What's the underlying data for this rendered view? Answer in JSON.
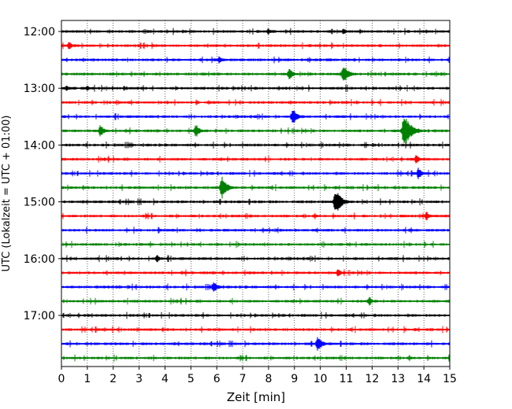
{
  "chart_data": {
    "type": "line",
    "title": "",
    "xlabel": "Zeit  [min]",
    "ylabel": "UTC (Lokalzeit = UTC + 01:00)",
    "xlim": [
      0,
      15
    ],
    "x_ticks": [
      0,
      1,
      2,
      3,
      4,
      5,
      6,
      7,
      8,
      9,
      10,
      11,
      12,
      13,
      14,
      15
    ],
    "y_tick_labels": [
      "12:00",
      "13:00",
      "14:00",
      "15:00",
      "16:00",
      "17:00"
    ],
    "grid": "vertical dotted at each minute",
    "row_interval_min": 15,
    "color_cycle": [
      "#000000",
      "#ff0000",
      "#0000ff",
      "#008000"
    ],
    "series": [
      {
        "start": "12:00",
        "color": "#000000",
        "events": [
          {
            "t": 8.0,
            "amp": 0.25
          },
          {
            "t": 10.9,
            "amp": 0.25
          }
        ]
      },
      {
        "start": "12:15",
        "color": "#ff0000",
        "events": [
          {
            "t": 0.3,
            "amp": 0.3
          }
        ]
      },
      {
        "start": "12:30",
        "color": "#0000ff",
        "events": [
          {
            "t": 6.1,
            "amp": 0.3
          }
        ]
      },
      {
        "start": "12:45",
        "color": "#008000",
        "events": [
          {
            "t": 8.8,
            "amp": 0.45
          },
          {
            "t": 10.9,
            "amp": 0.7
          }
        ]
      },
      {
        "start": "13:00",
        "color": "#000000",
        "events": [
          {
            "t": 0.2,
            "amp": 0.25
          },
          {
            "t": 1.0,
            "amp": 0.2
          }
        ]
      },
      {
        "start": "13:15",
        "color": "#ff0000",
        "events": []
      },
      {
        "start": "13:30",
        "color": "#0000ff",
        "events": [
          {
            "t": 8.95,
            "amp": 0.6
          }
        ]
      },
      {
        "start": "13:45",
        "color": "#008000",
        "events": [
          {
            "t": 1.5,
            "amp": 0.45
          },
          {
            "t": 5.2,
            "amp": 0.5
          },
          {
            "t": 13.25,
            "amp": 1.2
          }
        ]
      },
      {
        "start": "14:00",
        "color": "#000000",
        "events": []
      },
      {
        "start": "14:15",
        "color": "#ff0000",
        "events": [
          {
            "t": 13.7,
            "amp": 0.35
          }
        ]
      },
      {
        "start": "14:30",
        "color": "#0000ff",
        "events": [
          {
            "t": 13.8,
            "amp": 0.45
          }
        ]
      },
      {
        "start": "14:45",
        "color": "#008000",
        "events": [
          {
            "t": 6.2,
            "amp": 0.8
          }
        ]
      },
      {
        "start": "15:00",
        "color": "#000000",
        "events": [
          {
            "t": 10.6,
            "amp": 0.9
          }
        ]
      },
      {
        "start": "15:15",
        "color": "#ff0000",
        "events": [
          {
            "t": 14.1,
            "amp": 0.35
          }
        ]
      },
      {
        "start": "15:30",
        "color": "#0000ff",
        "events": []
      },
      {
        "start": "15:45",
        "color": "#008000",
        "events": []
      },
      {
        "start": "16:00",
        "color": "#000000",
        "events": [
          {
            "t": 3.7,
            "amp": 0.3
          }
        ]
      },
      {
        "start": "16:15",
        "color": "#ff0000",
        "events": [
          {
            "t": 10.7,
            "amp": 0.3
          }
        ]
      },
      {
        "start": "16:30",
        "color": "#0000ff",
        "events": [
          {
            "t": 5.9,
            "amp": 0.45
          }
        ]
      },
      {
        "start": "16:45",
        "color": "#008000",
        "events": [
          {
            "t": 11.9,
            "amp": 0.35
          }
        ]
      },
      {
        "start": "17:00",
        "color": "#000000",
        "events": []
      },
      {
        "start": "17:15",
        "color": "#ff0000",
        "events": []
      },
      {
        "start": "17:30",
        "color": "#0000ff",
        "events": [
          {
            "t": 9.9,
            "amp": 0.6
          }
        ]
      },
      {
        "start": "17:45",
        "color": "#008000",
        "events": []
      }
    ]
  }
}
